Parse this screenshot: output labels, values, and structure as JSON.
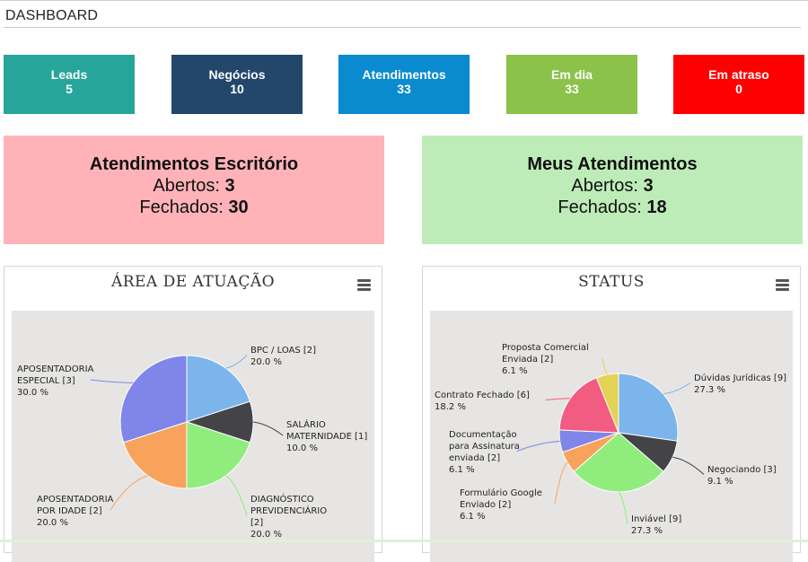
{
  "header": {
    "title": "DASHBOARD"
  },
  "stats": [
    {
      "label": "Leads",
      "value": "5",
      "color": "#26a69a"
    },
    {
      "label": "Negócios",
      "value": "10",
      "color": "#23476b"
    },
    {
      "label": "Atendimentos",
      "value": "33",
      "color": "#0a8bd0"
    },
    {
      "label": "Em dia",
      "value": "33",
      "color": "#8bc34a"
    },
    {
      "label": "Em atraso",
      "value": "0",
      "color": "#ff0000"
    }
  ],
  "summary": {
    "office": {
      "title": "Atendimentos Escritório",
      "open_label": "Abertos:",
      "open_value": "3",
      "closed_label": "Fechados:",
      "closed_value": "30",
      "bg": "#ffb3b8"
    },
    "mine": {
      "title": "Meus Atendimentos",
      "open_label": "Abertos:",
      "open_value": "3",
      "closed_label": "Fechados:",
      "closed_value": "18",
      "bg": "#beecb8"
    }
  },
  "chart_data": [
    {
      "type": "pie",
      "title": "ÁREA DE ATUAÇÃO",
      "slices": [
        {
          "name": "BPC / LOAS",
          "count": 2,
          "percent": 20.0,
          "color": "#7cb5ec",
          "label_lines": [
            "BPC / LOAS [2]",
            "20.0 %"
          ]
        },
        {
          "name": "SALÁRIO MATERNIDADE",
          "count": 1,
          "percent": 10.0,
          "color": "#434348",
          "label_lines": [
            "SALÁRIO",
            "MATERNIDADE [1]",
            "10.0 %"
          ]
        },
        {
          "name": "DIAGNÓSTICO PREVIDENCIÁRIO",
          "count": 2,
          "percent": 20.0,
          "color": "#90ed7d",
          "label_lines": [
            "DIAGNÓSTICO",
            "PREVIDENCIÁRIO",
            "[2]",
            "20.0 %"
          ]
        },
        {
          "name": "APOSENTADORIA POR IDADE",
          "count": 2,
          "percent": 20.0,
          "color": "#f7a35c",
          "label_lines": [
            "APOSENTADORIA",
            "POR IDADE [2]",
            "20.0 %"
          ]
        },
        {
          "name": "APOSENTADORIA ESPECIAL",
          "count": 3,
          "percent": 30.0,
          "color": "#8085e9",
          "label_lines": [
            "APOSENTADORIA",
            "ESPECIAL [3]",
            "30.0 %"
          ]
        }
      ]
    },
    {
      "type": "pie",
      "title": "STATUS",
      "slices": [
        {
          "name": "Dúvidas Jurídicas",
          "count": 9,
          "percent": 27.3,
          "color": "#7cb5ec",
          "label_lines": [
            "Dúvidas Jurídicas [9]",
            "27.3 %"
          ]
        },
        {
          "name": "Negociando",
          "count": 3,
          "percent": 9.1,
          "color": "#434348",
          "label_lines": [
            "Negociando [3]",
            "9.1 %"
          ]
        },
        {
          "name": "Inviável",
          "count": 9,
          "percent": 27.3,
          "color": "#90ed7d",
          "label_lines": [
            "Inviável [9]",
            "27.3 %"
          ]
        },
        {
          "name": "Formulário Google Enviado",
          "count": 2,
          "percent": 6.1,
          "color": "#f7a35c",
          "label_lines": [
            "Formulário Google",
            "Enviado [2]",
            "6.1 %"
          ]
        },
        {
          "name": "Documentação para Assinatura enviada",
          "count": 2,
          "percent": 6.1,
          "color": "#8085e9",
          "label_lines": [
            "Documentação",
            "para Assinatura",
            "enviada [2]",
            "6.1 %"
          ]
        },
        {
          "name": "Contrato Fechado",
          "count": 6,
          "percent": 18.2,
          "color": "#f15c80",
          "label_lines": [
            "Contrato Fechado [6]",
            "18.2 %"
          ]
        },
        {
          "name": "Proposta Comercial Enviada",
          "count": 2,
          "percent": 6.1,
          "color": "#e4d354",
          "label_lines": [
            "Proposta Comercial",
            "Enviada [2]",
            "6.1 %"
          ]
        }
      ]
    }
  ]
}
